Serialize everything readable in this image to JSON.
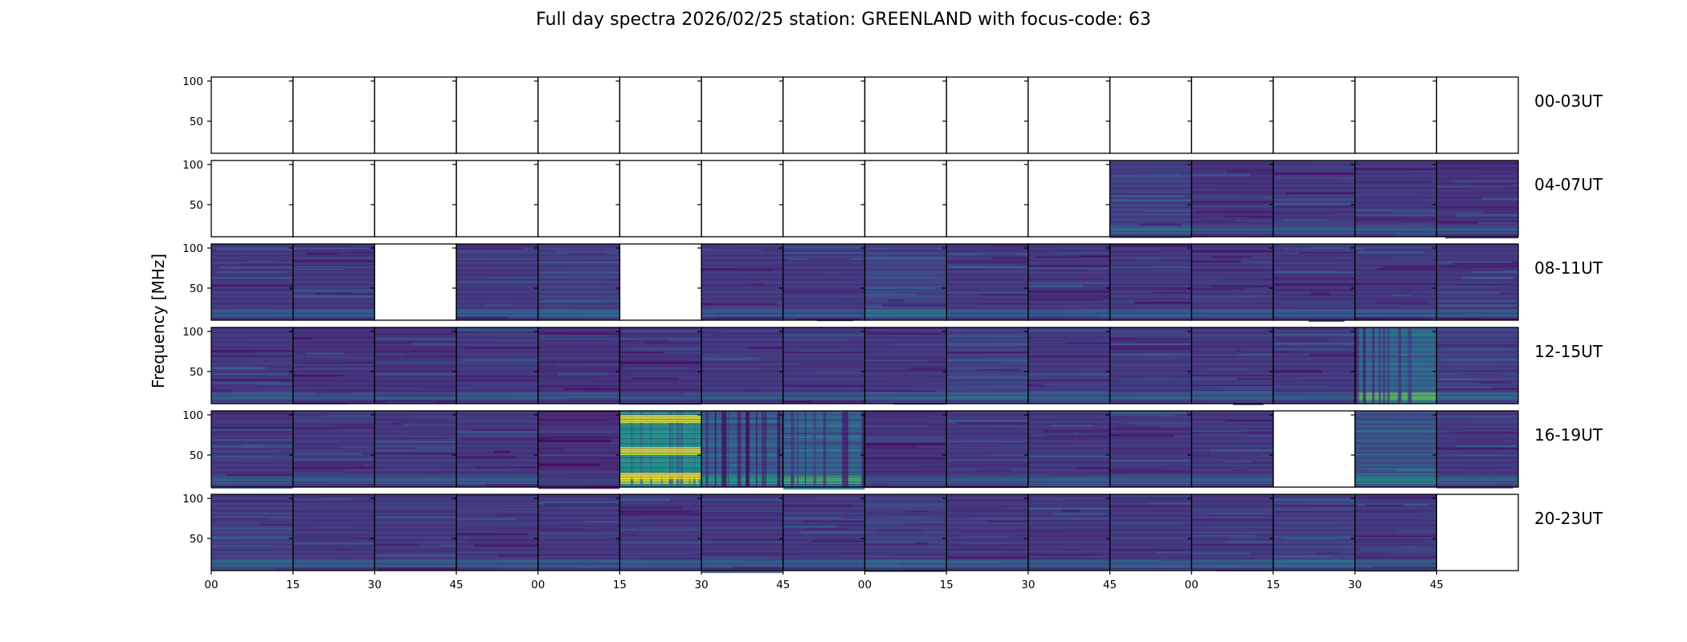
{
  "chart_data": {
    "type": "heatmap",
    "title": "Full day spectra 2026/02/25 station: GREENLAND with focus-code: 63",
    "xlabel": "",
    "ylabel": "Frequency [MHz]",
    "colormap": "viridis",
    "ylim": [
      10,
      105
    ],
    "yticks": [
      100,
      50
    ],
    "xtick_labels": [
      "00",
      "15",
      "30",
      "45",
      "00",
      "15",
      "30",
      "45",
      "00",
      "15",
      "30",
      "45",
      "00",
      "15",
      "30",
      "45"
    ],
    "panels_per_row": 16,
    "panel_duration_min": 15,
    "rows": [
      {
        "label": "00-03UT",
        "panels": [
          0,
          0,
          0,
          0,
          0,
          0,
          0,
          0,
          0,
          0,
          0,
          0,
          0,
          0,
          0,
          0
        ]
      },
      {
        "label": "04-07UT",
        "panels": [
          0,
          0,
          0,
          0,
          0,
          0,
          0,
          0,
          0,
          0,
          0,
          0.25,
          0.15,
          0.2,
          0.2,
          0.15
        ]
      },
      {
        "label": "08-11UT",
        "panels": [
          0.2,
          0.2,
          0,
          0.2,
          0.25,
          0,
          0.2,
          0.2,
          0.3,
          0.2,
          0.2,
          0.2,
          0.2,
          0.2,
          0.2,
          0.2
        ]
      },
      {
        "label": "12-15UT",
        "panels": [
          0.2,
          0.15,
          0.15,
          0.2,
          0.15,
          0.15,
          0.2,
          0.2,
          0.2,
          0.25,
          0.2,
          0.2,
          0.2,
          0.2,
          0.6,
          0.25
        ]
      },
      {
        "label": "16-19UT",
        "panels": [
          0.2,
          0.2,
          0.2,
          0.2,
          0.1,
          0.95,
          0.5,
          0.55,
          0.15,
          0.2,
          0.2,
          0.2,
          0.2,
          0,
          0.4,
          0.2
        ]
      },
      {
        "label": "20-23UT",
        "panels": [
          0.25,
          0.2,
          0.2,
          0.2,
          0.2,
          0.2,
          0.2,
          0.2,
          0.25,
          0.2,
          0.2,
          0.2,
          0.2,
          0.25,
          0.2,
          0
        ]
      }
    ],
    "panel_value_note": "0 = no data (blank white panel); otherwise relative mean intensity 0-1 on viridis scale",
    "colors": {
      "no_data": "#ffffff",
      "viridis_low": "#440154",
      "viridis_base": "#472d7b",
      "viridis_mid": "#21918c",
      "viridis_high": "#fde725"
    }
  }
}
